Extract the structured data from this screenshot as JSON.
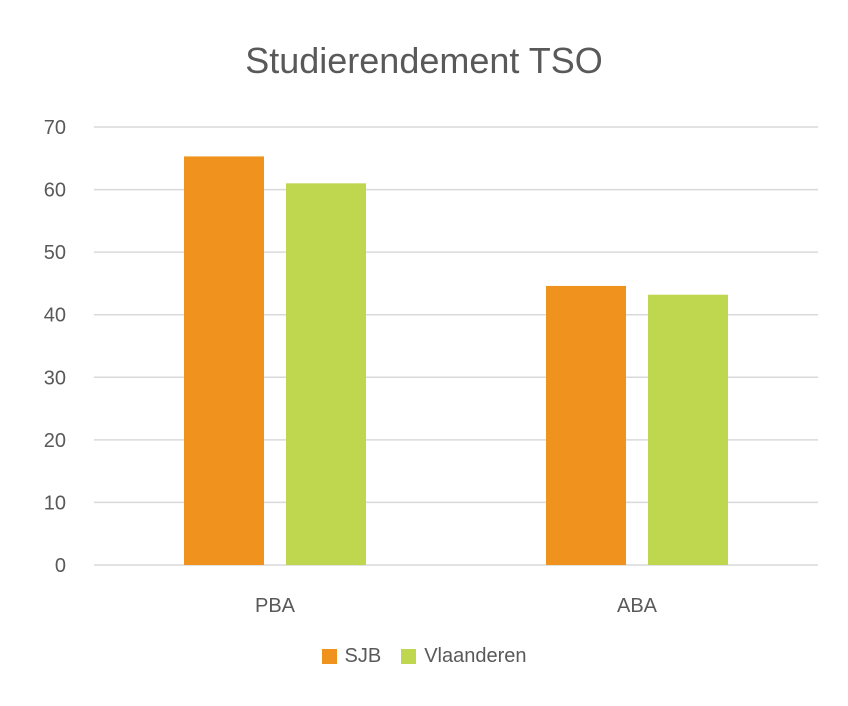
{
  "chart_data": {
    "type": "bar",
    "title": "Studierendement TSO",
    "categories": [
      "PBA",
      "ABA"
    ],
    "series": [
      {
        "name": "SJB",
        "values": [
          65.3,
          44.6
        ],
        "color": "#f0931e"
      },
      {
        "name": "Vlaanderen",
        "values": [
          61,
          43.2
        ],
        "color": "#bfd74f"
      }
    ],
    "ylim": [
      0,
      70
    ],
    "yticks": [
      0,
      10,
      20,
      30,
      40,
      50,
      60,
      70
    ],
    "grid": true,
    "legend": "bottom"
  }
}
